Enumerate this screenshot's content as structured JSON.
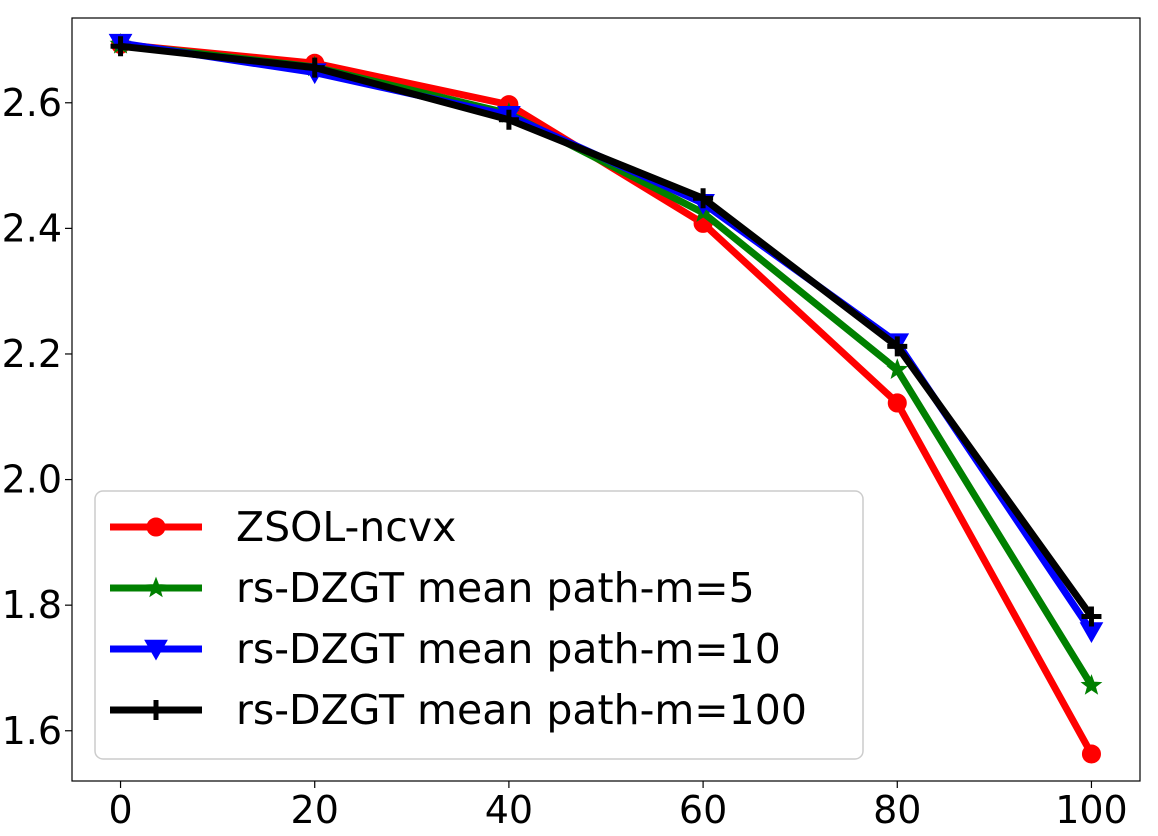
{
  "chart_data": {
    "type": "line",
    "title": "",
    "xlabel": "",
    "ylabel": "",
    "x": [
      0,
      20,
      40,
      60,
      80,
      100
    ],
    "xlim": [
      -5,
      105
    ],
    "ylim": [
      1.52,
      2.735
    ],
    "xticks": [
      0,
      20,
      40,
      60,
      80,
      100
    ],
    "yticks": [
      1.6,
      1.8,
      2.0,
      2.2,
      2.4,
      2.6
    ],
    "xtick_labels": [
      "0",
      "20",
      "40",
      "60",
      "80",
      "100"
    ],
    "ytick_labels": [
      "1.6",
      "1.8",
      "2.0",
      "2.2",
      "2.4",
      "2.6"
    ],
    "grid": false,
    "legend_position": "lower-left",
    "series": [
      {
        "name": "ZSOL-ncvx",
        "color": "#ff0000",
        "marker": "circle",
        "values": [
          2.693,
          2.663,
          2.597,
          2.408,
          2.122,
          1.563
        ]
      },
      {
        "name": "rs-DZGT mean path-m=5",
        "color": "#008000",
        "marker": "star",
        "values": [
          2.693,
          2.657,
          2.583,
          2.425,
          2.175,
          1.672
        ]
      },
      {
        "name": "rs-DZGT mean path-m=10",
        "color": "#0000ff",
        "marker": "triangle-down",
        "values": [
          2.695,
          2.648,
          2.58,
          2.44,
          2.218,
          1.758
        ]
      },
      {
        "name": "rs-DZGT mean path-m=100",
        "color": "#000000",
        "marker": "plus",
        "values": [
          2.69,
          2.656,
          2.573,
          2.448,
          2.212,
          1.782
        ]
      }
    ]
  }
}
